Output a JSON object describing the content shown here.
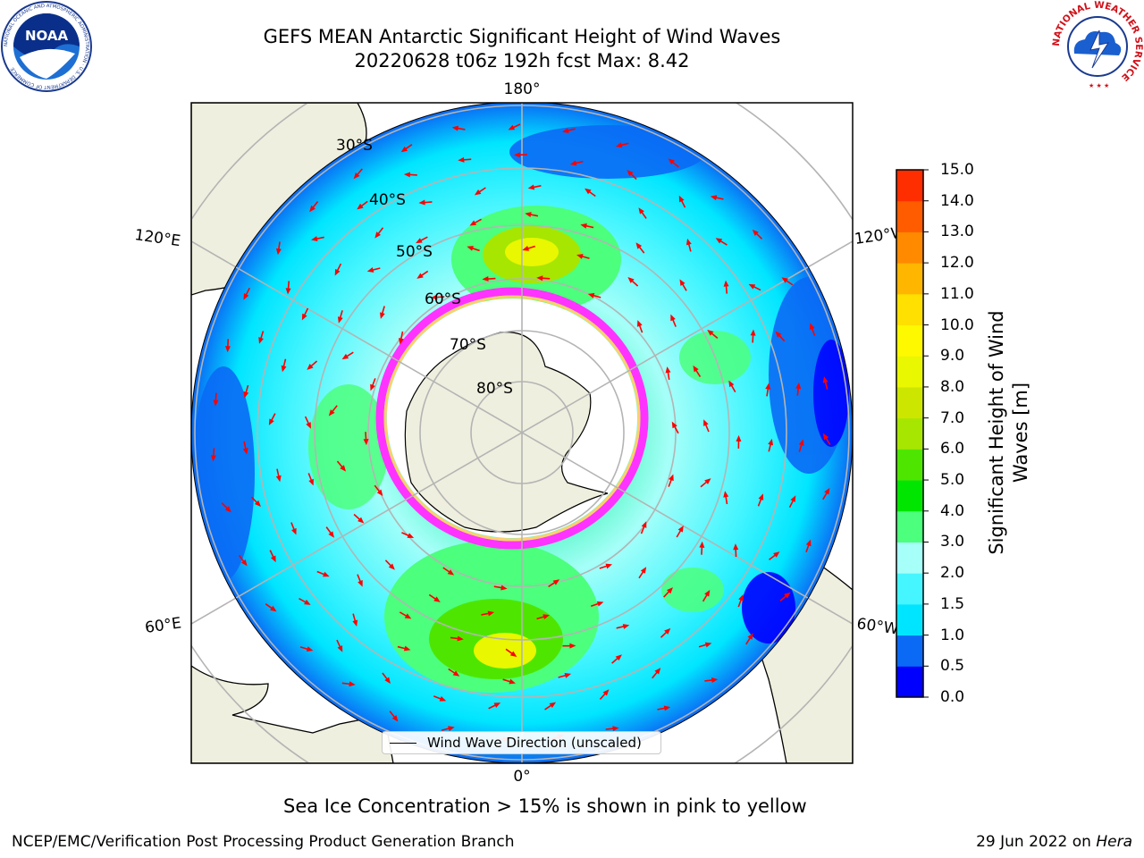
{
  "header": {
    "title_line1": "GEFS MEAN Antarctic Significant Height of Wind Waves",
    "title_line2": "20220628 t06z 192h fcst   Max: 8.42"
  },
  "logos": {
    "noaa_text": "NOAA",
    "noaa_ring_text": "NATIONAL OCEANIC AND ATMOSPHERIC ADMINISTRATION · U.S. DEPARTMENT OF COMMERCE",
    "nws_ring_text": "NATIONAL WEATHER SERVICE"
  },
  "map": {
    "longitude_labels": {
      "top": "180°",
      "bottom": "0°",
      "upper_left": "120°E",
      "lower_left": "60°E",
      "upper_right": "120°W",
      "lower_right": "60°W"
    },
    "latitude_labels": [
      "30°S",
      "40°S",
      "50°S",
      "60°S",
      "70°S",
      "80°S"
    ],
    "legend_label": "Wind Wave Direction (unscaled)"
  },
  "colorbar": {
    "title": "Significant Height of Wind Waves [m]",
    "ticks": [
      "15.0",
      "14.0",
      "13.0",
      "12.0",
      "11.0",
      "10.0",
      "9.0",
      "8.0",
      "7.0",
      "6.0",
      "5.0",
      "4.0",
      "3.0",
      "2.0",
      "1.5",
      "1.0",
      "0.5",
      "0.0"
    ],
    "colors": [
      "#0000ff",
      "#0a6af5",
      "#00e5ff",
      "#45f5ff",
      "#a6fff9",
      "#4cff7c",
      "#00e600",
      "#4ee600",
      "#a7e600",
      "#cde600",
      "#e9f700",
      "#fff900",
      "#ffe000",
      "#ffb600",
      "#ff8a00",
      "#ff5c00",
      "#ff2e00",
      "#ff0000"
    ]
  },
  "ice_note": "Sea Ice Concentration > 15% is shown in pink to yellow",
  "footer": {
    "left": "NCEP/EMC/Verification Post Processing Product Generation Branch",
    "right_date": "29 Jun 2022 on ",
    "right_machine": "Hera"
  }
}
